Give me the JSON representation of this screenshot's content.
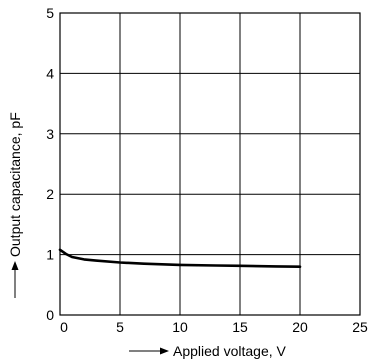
{
  "chart_data": {
    "type": "line",
    "title": "",
    "xlabel": "Applied voltage, V",
    "ylabel": "Output capacitance, pF",
    "xlim": [
      0,
      25
    ],
    "ylim": [
      0,
      5
    ],
    "xticks": [
      "0",
      "5",
      "10",
      "15",
      "20",
      "25"
    ],
    "yticks": [
      "0",
      "1",
      "2",
      "3",
      "4",
      "5"
    ],
    "grid": true,
    "series": [
      {
        "x": [
          0,
          0.5,
          1,
          2,
          3,
          5,
          7,
          10,
          13,
          15,
          18,
          20
        ],
        "y": [
          1.08,
          1.01,
          0.96,
          0.92,
          0.9,
          0.87,
          0.85,
          0.83,
          0.82,
          0.815,
          0.805,
          0.8
        ]
      }
    ]
  }
}
